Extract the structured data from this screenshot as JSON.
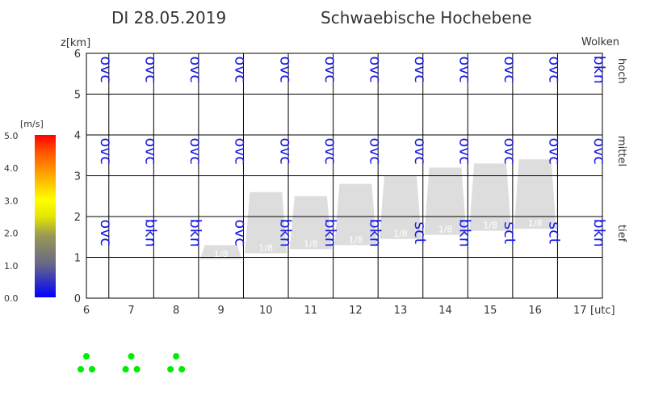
{
  "header": {
    "date": "DI 28.05.2019",
    "region": "Schwaebische Hochebene"
  },
  "labels": {
    "y_axis": "z[km]",
    "clouds": "Wolken",
    "x_unit": "[utc]",
    "level_high": "hoch",
    "level_mid": "mittel",
    "level_low": "tief"
  },
  "colorbar": {
    "unit": "[m/s]",
    "ticks": [
      "5.0",
      "4.0",
      "3.0",
      "2.0",
      "1.0",
      "0.0"
    ],
    "colors": [
      "#0000ff",
      "#555577",
      "#888866",
      "#dddd00",
      "#ffff00",
      "#ffaa00",
      "#ff5500",
      "#ff0000"
    ]
  },
  "chart_data": {
    "type": "table",
    "x_ticks": [
      "6",
      "7",
      "8",
      "9",
      "10",
      "11",
      "12",
      "13",
      "14",
      "15",
      "16",
      "17"
    ],
    "y_ticks": [
      "0",
      "1",
      "2",
      "3",
      "4",
      "5",
      "6"
    ],
    "xlim": [
      6,
      17.5
    ],
    "ylim": [
      0,
      6
    ],
    "hours": [
      6,
      7,
      8,
      9,
      10,
      11,
      12,
      13,
      14,
      15,
      16,
      17
    ],
    "cloud_high": [
      "ovc",
      "ovc",
      "ovc",
      "ovc",
      "ovc",
      "ovc",
      "ovc",
      "ovc",
      "ovc",
      "ovc",
      "ovc",
      "bkn"
    ],
    "cloud_mid": [
      "ovc",
      "ovc",
      "ovc",
      "ovc",
      "ovc",
      "ovc",
      "ovc",
      "ovc",
      "ovc",
      "ovc",
      "ovc",
      "ovc"
    ],
    "cloud_low": [
      "ovc",
      "bkn",
      "bkn",
      "ovc",
      "bkn",
      "bkn",
      "bkn",
      "bkn",
      "sct",
      "bkn",
      "sct",
      "sct",
      "bkn"
    ],
    "cloud_low_hours": [
      6,
      7,
      8,
      9,
      10,
      11,
      12,
      13,
      13,
      14,
      15,
      16,
      17
    ],
    "convective_clouds": [
      {
        "hour": 9,
        "base": 0.95,
        "top": 1.3,
        "cover": "1/8"
      },
      {
        "hour": 10,
        "base": 1.1,
        "top": 2.6,
        "cover": "1/8"
      },
      {
        "hour": 11,
        "base": 1.2,
        "top": 2.5,
        "cover": "1/8"
      },
      {
        "hour": 12,
        "base": 1.3,
        "top": 2.8,
        "cover": "1/8"
      },
      {
        "hour": 13,
        "base": 1.45,
        "top": 3.0,
        "cover": "1/8"
      },
      {
        "hour": 14,
        "base": 1.55,
        "top": 3.2,
        "cover": "1/8"
      },
      {
        "hour": 15,
        "base": 1.65,
        "top": 3.3,
        "cover": "1/8"
      },
      {
        "hour": 16,
        "base": 1.7,
        "top": 3.4,
        "cover": "1/8"
      }
    ],
    "weather_symbol_hours": [
      6,
      7,
      8
    ],
    "weather_symbol_color": "#00ee00",
    "cloud_fill_color": "#dddddd",
    "text_color": "#1a1ae6"
  }
}
